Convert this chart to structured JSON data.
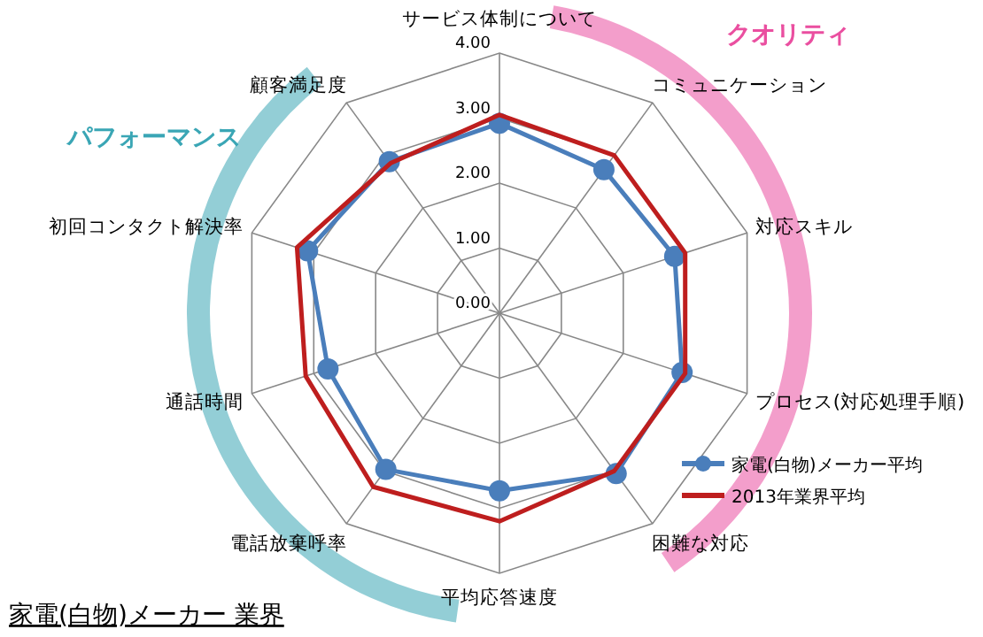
{
  "chart_data": {
    "type": "radar",
    "title": "家電(白物)メーカー 業界",
    "categories": [
      "サービス体制について",
      "コミュニケーション",
      "対応スキル",
      "プロセス(対応処理手順)",
      "困難な対応",
      "平均応答速度",
      "電話放棄呼率",
      "通話時間",
      "初回コンタクト解決率",
      "顧客満足度"
    ],
    "series": [
      {
        "name": "家電(白物)メーカー平均",
        "color": "#4a7ebb",
        "marker": "circle",
        "values": [
          2.92,
          2.73,
          2.83,
          2.95,
          3.05,
          2.73,
          2.97,
          2.77,
          3.1,
          2.88
        ]
      },
      {
        "name": "2013年業界平均",
        "color": "#be1e1e",
        "marker": "none",
        "values": [
          3.05,
          3.0,
          3.0,
          3.0,
          3.0,
          3.2,
          3.3,
          3.13,
          3.27,
          2.85
        ]
      }
    ],
    "ylim": [
      0,
      4
    ],
    "yticks": [
      {
        "value": 0,
        "label": "0.00"
      },
      {
        "value": 1,
        "label": "1.00"
      },
      {
        "value": 2,
        "label": "2.00"
      },
      {
        "value": 3,
        "label": "3.00"
      },
      {
        "value": 4,
        "label": "4.00"
      }
    ],
    "grid": true,
    "legend": "right",
    "annotations": [
      "クオリティ",
      "パフォーマンス"
    ]
  }
}
